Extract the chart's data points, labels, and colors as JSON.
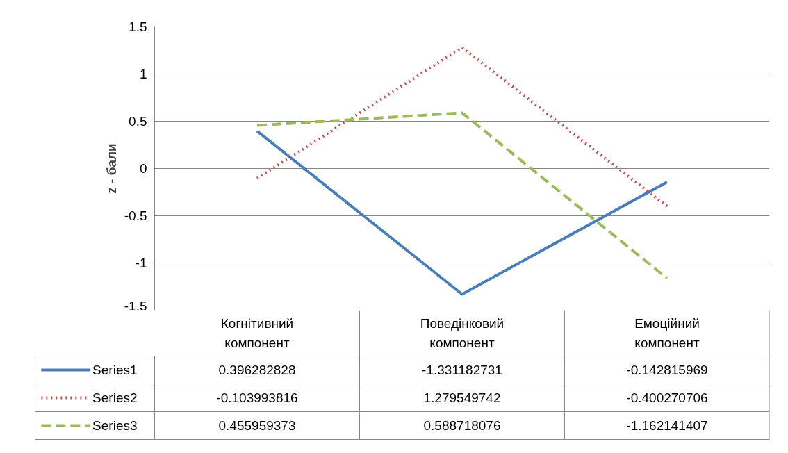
{
  "chart_data": {
    "type": "line",
    "ylabel": "z - бали",
    "categories": [
      "Когнітивний\nкомпонент",
      "Поведінковий\nкомпонент",
      "Емоційний\nкомпонент"
    ],
    "series": [
      {
        "name": "Series1",
        "color": "#4a7ebb",
        "line_style": "solid",
        "values": [
          0.396282828,
          -1.331182731,
          -0.142815969
        ]
      },
      {
        "name": "Series2",
        "color": "#c0504d",
        "line_style": "dotted",
        "values": [
          -0.103993816,
          1.279549742,
          -0.400270706
        ]
      },
      {
        "name": "Series3",
        "color": "#9bbb59",
        "line_style": "dashed",
        "values": [
          0.455959373,
          0.588718076,
          -1.162141407
        ]
      }
    ],
    "ylim": [
      -1.5,
      1.5
    ],
    "yticks": [
      -1.5,
      -1,
      -0.5,
      0,
      0.5,
      1,
      1.5
    ],
    "grid": "y",
    "legend": "bottom",
    "data_labels": true
  }
}
